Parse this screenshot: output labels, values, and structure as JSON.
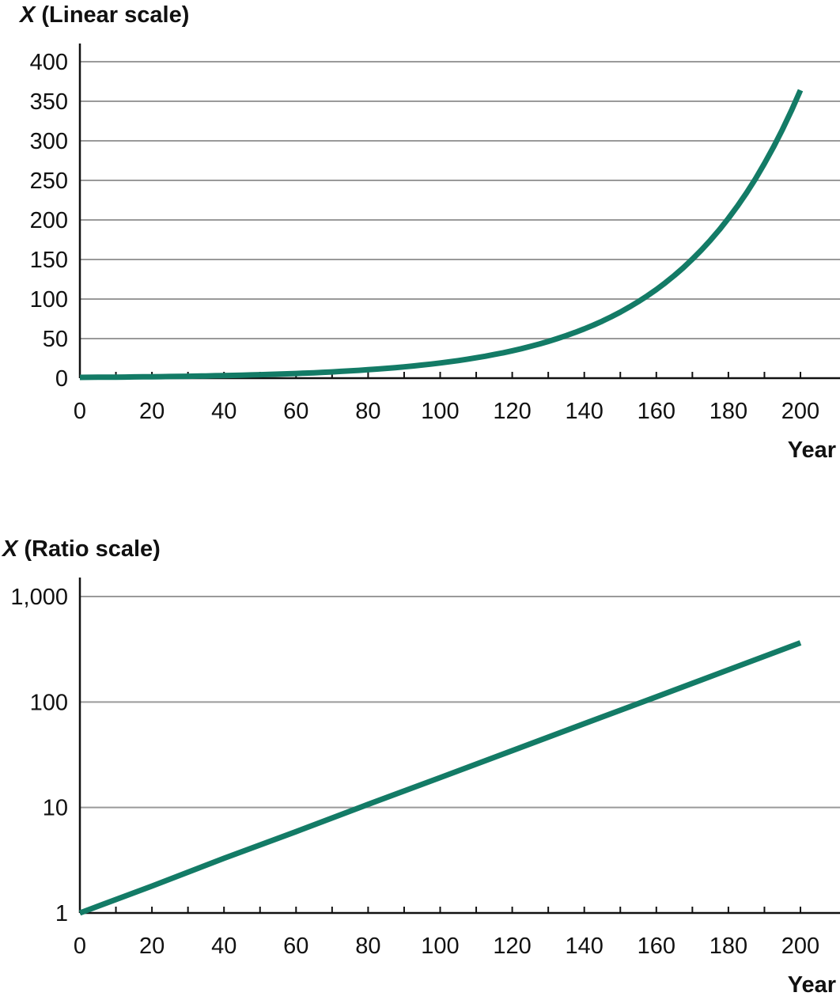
{
  "chart_data": [
    {
      "type": "line",
      "ylabel_var": "X",
      "ylabel": "(Linear scale)",
      "xlabel": "Year",
      "xlim": [
        0,
        210
      ],
      "ylim": [
        0,
        400
      ],
      "y_scale": "linear",
      "xticks": [
        0,
        20,
        40,
        60,
        80,
        100,
        120,
        140,
        160,
        180,
        200
      ],
      "xtick_labels": [
        "0",
        "20",
        "40",
        "60",
        "80",
        "100",
        "120",
        "140",
        "160",
        "180",
        "200"
      ],
      "x_minor_ticks": [
        10,
        30,
        50,
        70,
        90,
        110,
        130,
        150,
        170,
        190
      ],
      "yticks": [
        0,
        50,
        100,
        150,
        200,
        250,
        300,
        350,
        400
      ],
      "ytick_labels": [
        "0",
        "50",
        "100",
        "150",
        "200",
        "250",
        "300",
        "350",
        "400"
      ],
      "grid": true,
      "line_color": "#137b66",
      "grid_color": "#9a9a9a",
      "series": [
        {
          "x": [
            0,
            20,
            40,
            60,
            80,
            100,
            120,
            140,
            160,
            180,
            200
          ],
          "values": [
            1,
            1.8,
            3.3,
            5.9,
            10.7,
            19.2,
            34.6,
            62.3,
            112,
            202,
            364
          ]
        }
      ]
    },
    {
      "type": "line",
      "ylabel_var": "X",
      "ylabel": "(Ratio scale)",
      "xlabel": "Year",
      "xlim": [
        0,
        210
      ],
      "ylim": [
        1,
        1000
      ],
      "y_scale": "log",
      "xticks": [
        0,
        20,
        40,
        60,
        80,
        100,
        120,
        140,
        160,
        180,
        200
      ],
      "xtick_labels": [
        "0",
        "20",
        "40",
        "60",
        "80",
        "100",
        "120",
        "140",
        "160",
        "180",
        "200"
      ],
      "x_minor_ticks": [
        10,
        30,
        50,
        70,
        90,
        110,
        130,
        150,
        170,
        190
      ],
      "yticks": [
        1,
        10,
        100,
        1000
      ],
      "ytick_labels": [
        "1",
        "10",
        "100",
        "1,000"
      ],
      "grid": true,
      "line_color": "#137b66",
      "grid_color": "#9a9a9a",
      "series": [
        {
          "x": [
            0,
            20,
            40,
            60,
            80,
            100,
            120,
            140,
            160,
            180,
            200
          ],
          "values": [
            1,
            1.8,
            3.3,
            5.9,
            10.7,
            19.2,
            34.6,
            62.3,
            112,
            202,
            364
          ]
        }
      ]
    }
  ]
}
